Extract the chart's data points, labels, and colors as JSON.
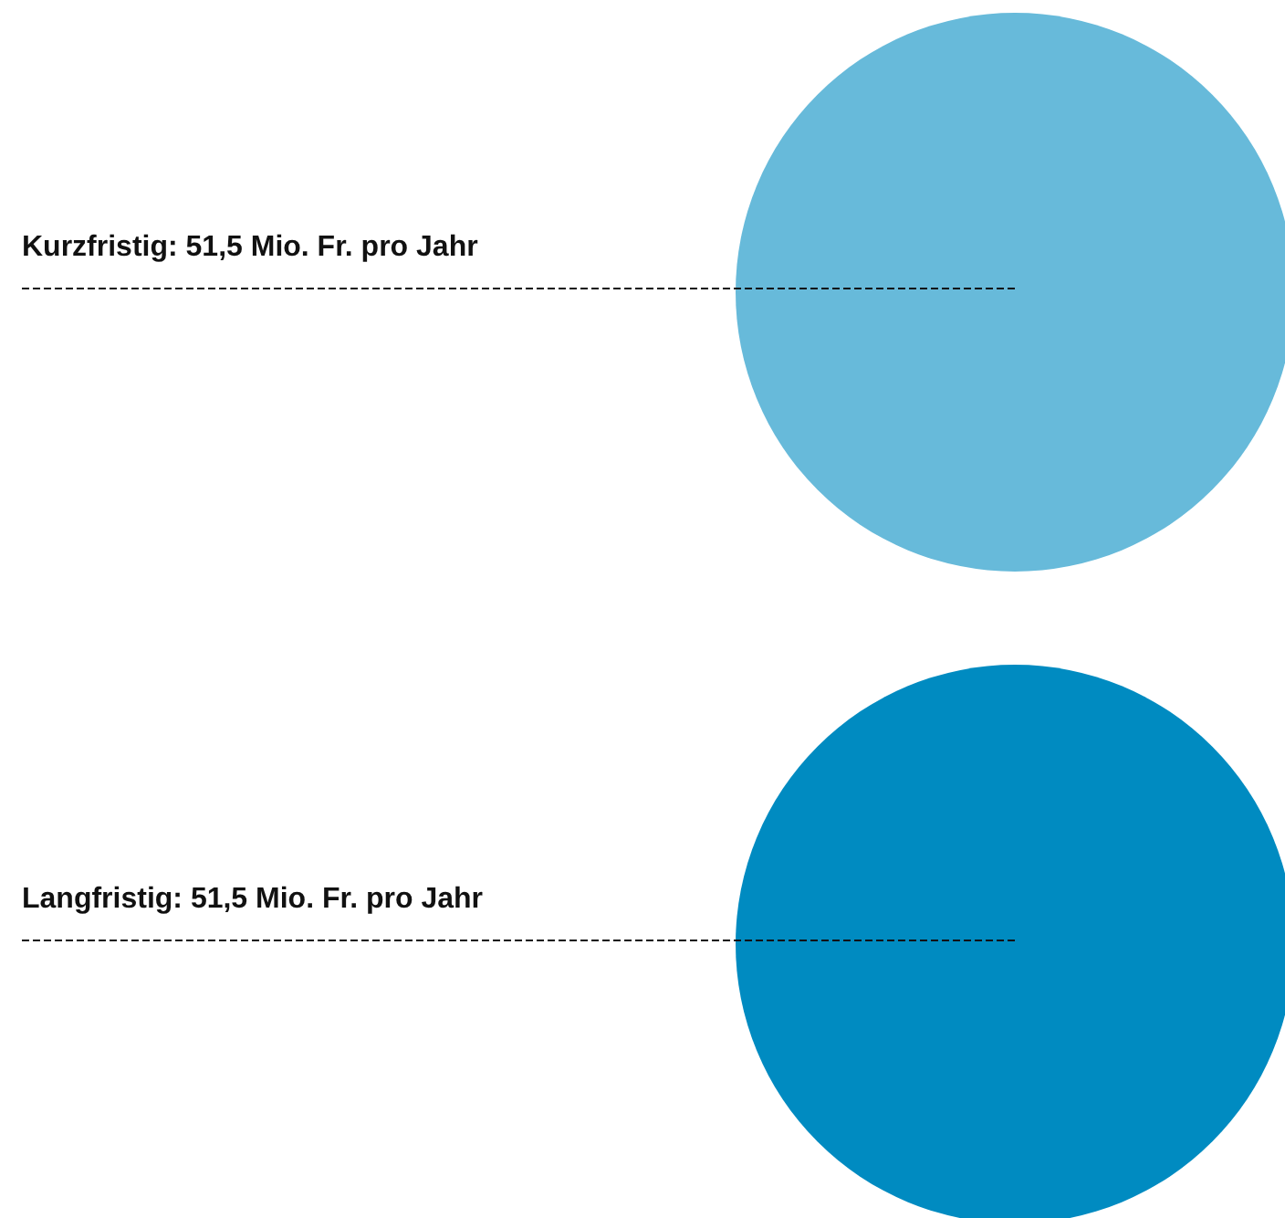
{
  "chart_data": {
    "type": "other",
    "values": [
      51.5,
      51.5
    ],
    "value_labels": [
      "Kurzfristig: 51,5 Mio. Fr. pro Jahr",
      "Langfristig: 51,5 Mio. Fr. pro Jahr"
    ],
    "colors": [
      "#67bada",
      "#008bc1"
    ]
  }
}
